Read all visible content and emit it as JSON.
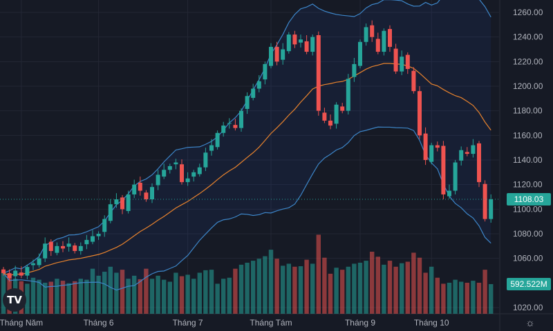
{
  "chart_data": {
    "type": "candlestick",
    "title": "",
    "colors": {
      "up": "#26a69a",
      "down": "#ef5350",
      "ma": "#e9832d",
      "bands": "#3d86c9",
      "band_fill": "rgba(41,98,255,0.07)",
      "background": "#161a25",
      "grid": "#232734"
    },
    "y_ticks": [
      "1260.00",
      "1240.00",
      "1220.00",
      "1200.00",
      "1180.00",
      "1160.00",
      "1140.00",
      "1120.00",
      "1100.00",
      "1080.00",
      "1060.00",
      "1020.00"
    ],
    "ylim": [
      1020,
      1260
    ],
    "x_labels": [
      {
        "label": "Tháng Năm",
        "index": 3
      },
      {
        "label": "Tháng 6",
        "index": 16
      },
      {
        "label": "Tháng 7",
        "index": 31
      },
      {
        "label": "Tháng Tám",
        "index": 45
      },
      {
        "label": "Tháng 9",
        "index": 60
      },
      {
        "label": "Tháng 10",
        "index": 72
      }
    ],
    "closes": [
      1048,
      1044,
      1050,
      1046,
      1053,
      1056,
      1060,
      1072,
      1066,
      1070,
      1068,
      1072,
      1066,
      1070,
      1075,
      1078,
      1080,
      1092,
      1104,
      1108,
      1100,
      1112,
      1120,
      1115,
      1108,
      1118,
      1128,
      1132,
      1135,
      1138,
      1122,
      1125,
      1130,
      1134,
      1146,
      1152,
      1162,
      1168,
      1170,
      1166,
      1180,
      1192,
      1198,
      1204,
      1218,
      1232,
      1220,
      1230,
      1242,
      1234,
      1238,
      1228,
      1240,
      1180,
      1172,
      1168,
      1185,
      1180,
      1206,
      1218,
      1236,
      1248,
      1240,
      1228,
      1245,
      1232,
      1212,
      1224,
      1214,
      1196,
      1160,
      1140,
      1152,
      1150,
      1112,
      1115,
      1138,
      1148,
      1145,
      1152,
      1122,
      1092,
      1108.03
    ],
    "volumes_m": [
      820,
      760,
      700,
      650,
      600,
      720,
      680,
      620,
      640,
      700,
      660,
      610,
      650,
      700,
      680,
      900,
      760,
      840,
      940,
      820,
      880,
      700,
      760,
      690,
      900,
      700,
      760,
      680,
      640,
      820,
      750,
      780,
      700,
      820,
      870,
      880,
      600,
      700,
      720,
      900,
      980,
      1020,
      1060,
      1100,
      1150,
      1280,
      1100,
      960,
      1000,
      940,
      950,
      1080,
      1000,
      1580,
      1120,
      800,
      920,
      880,
      940,
      1000,
      1020,
      1060,
      1240,
      1140,
      980,
      1060,
      940,
      1010,
      1040,
      1220,
      1120,
      820,
      940,
      720,
      600,
      620,
      680,
      640,
      620,
      660,
      620,
      880,
      592.522
    ],
    "last_price_label": "1108.03",
    "last_volume_label": "592.522M",
    "ma_period": 20
  }
}
